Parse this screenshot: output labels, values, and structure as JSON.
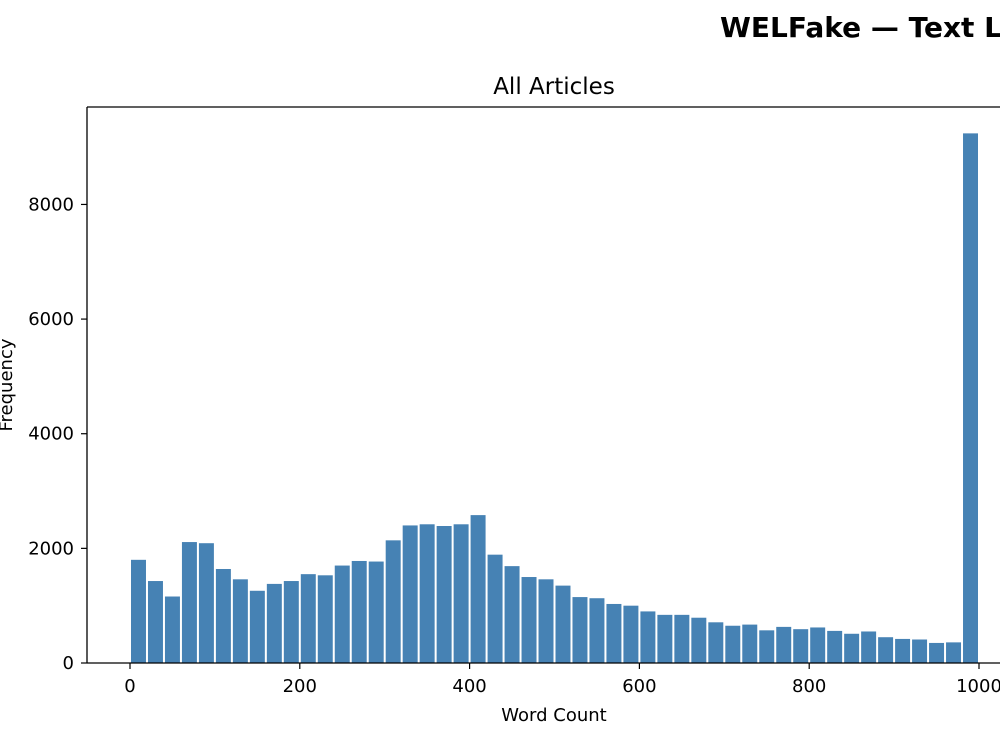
{
  "figure_title": "WELFake — Text L",
  "chart_data": {
    "type": "bar",
    "title": "All Articles",
    "xlabel": "Word Count",
    "ylabel": "Frequency",
    "xlim": [
      -50,
      1025
    ],
    "ylim": [
      0,
      9700
    ],
    "bin_width": 20,
    "bin_starts": [
      0,
      20,
      40,
      60,
      80,
      100,
      120,
      140,
      160,
      180,
      200,
      220,
      240,
      260,
      280,
      300,
      320,
      340,
      360,
      380,
      400,
      420,
      440,
      460,
      480,
      500,
      520,
      540,
      560,
      580,
      600,
      620,
      640,
      660,
      680,
      700,
      720,
      740,
      760,
      780,
      800,
      820,
      840,
      860,
      880,
      900,
      920,
      940,
      960,
      980
    ],
    "values": [
      1800,
      1430,
      1160,
      2110,
      2090,
      1640,
      1460,
      1260,
      1380,
      1430,
      1550,
      1530,
      1700,
      1780,
      1770,
      2140,
      2400,
      2420,
      2390,
      2420,
      2580,
      1890,
      1690,
      1500,
      1460,
      1350,
      1150,
      1130,
      1030,
      1000,
      900,
      840,
      840,
      790,
      710,
      650,
      670,
      570,
      630,
      590,
      620,
      560,
      510,
      550,
      450,
      420,
      410,
      350,
      360,
      9240
    ],
    "xticks": [
      0,
      200,
      400,
      600,
      800,
      1000
    ],
    "yticks": [
      0,
      2000,
      4000,
      6000,
      8000
    ],
    "bar_color": "#4682b4",
    "grid": false
  }
}
